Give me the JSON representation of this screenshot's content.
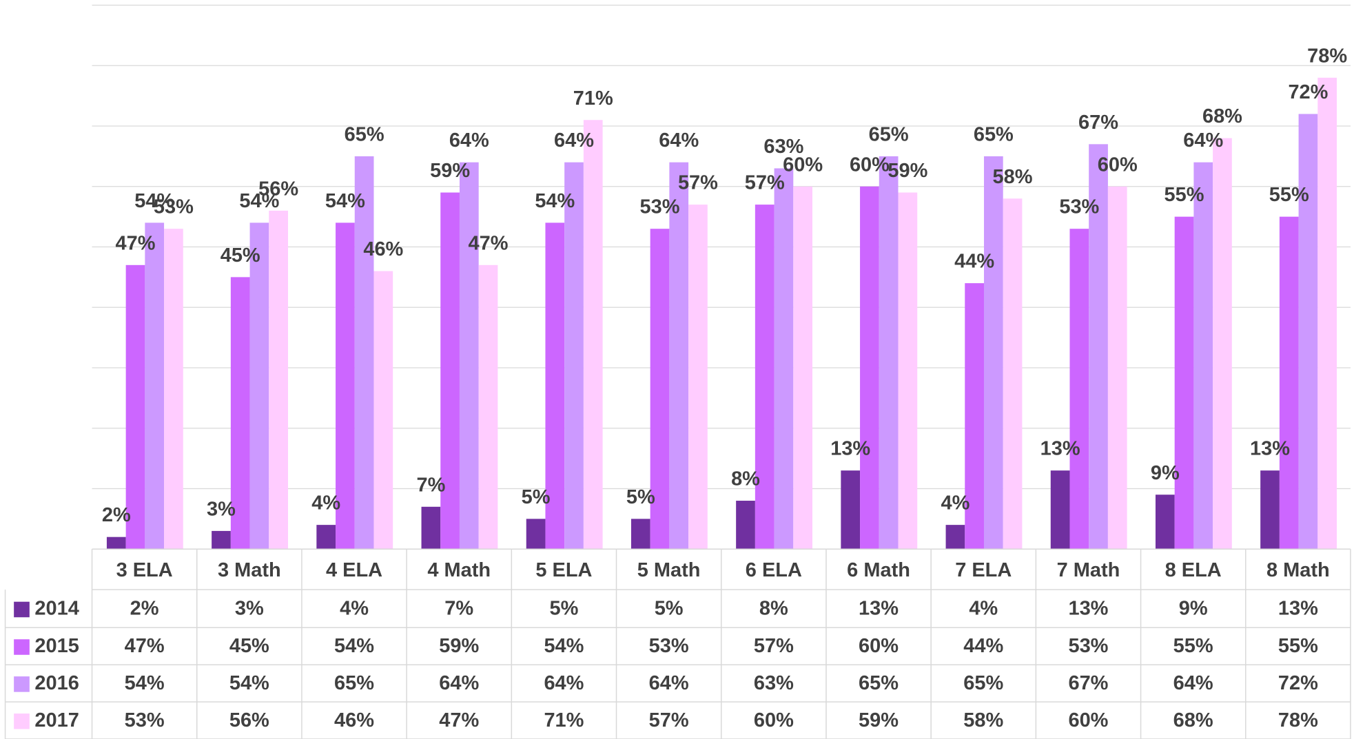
{
  "chart_data": {
    "type": "bar",
    "categories": [
      "3 ELA",
      "3 Math",
      "4 ELA",
      "4 Math",
      "5 ELA",
      "5 Math",
      "6 ELA",
      "6 Math",
      "7 ELA",
      "7 Math",
      "8 ELA",
      "8 Math"
    ],
    "series": [
      {
        "name": "2014",
        "color": "#7030a0",
        "values": [
          2,
          3,
          4,
          7,
          5,
          5,
          8,
          13,
          4,
          13,
          9,
          13
        ],
        "value_labels": [
          "2%",
          "3%",
          "4%",
          "7%",
          "5%",
          "5%",
          "8%",
          "13%",
          "4%",
          "13%",
          "9%",
          "13%"
        ]
      },
      {
        "name": "2015",
        "color": "#cc66ff",
        "values": [
          47,
          45,
          54,
          59,
          54,
          53,
          57,
          60,
          44,
          53,
          55,
          55
        ],
        "value_labels": [
          "47%",
          "45%",
          "54%",
          "59%",
          "54%",
          "53%",
          "57%",
          "60%",
          "44%",
          "53%",
          "55%",
          "55%"
        ]
      },
      {
        "name": "2016",
        "color": "#cc99ff",
        "values": [
          54,
          54,
          65,
          64,
          64,
          64,
          63,
          65,
          65,
          67,
          64,
          72
        ],
        "value_labels": [
          "54%",
          "54%",
          "65%",
          "64%",
          "64%",
          "64%",
          "63%",
          "65%",
          "65%",
          "67%",
          "64%",
          "72%"
        ]
      },
      {
        "name": "2017",
        "color": "#ffccff",
        "values": [
          53,
          56,
          46,
          47,
          71,
          57,
          60,
          59,
          58,
          60,
          68,
          78
        ],
        "value_labels": [
          "53%",
          "56%",
          "46%",
          "47%",
          "71%",
          "57%",
          "60%",
          "59%",
          "58%",
          "60%",
          "68%",
          "78%"
        ]
      }
    ],
    "ylim": [
      0,
      90
    ],
    "yticks": [
      0,
      10,
      20,
      30,
      40,
      50,
      60,
      70,
      80,
      90
    ],
    "grid": true
  }
}
